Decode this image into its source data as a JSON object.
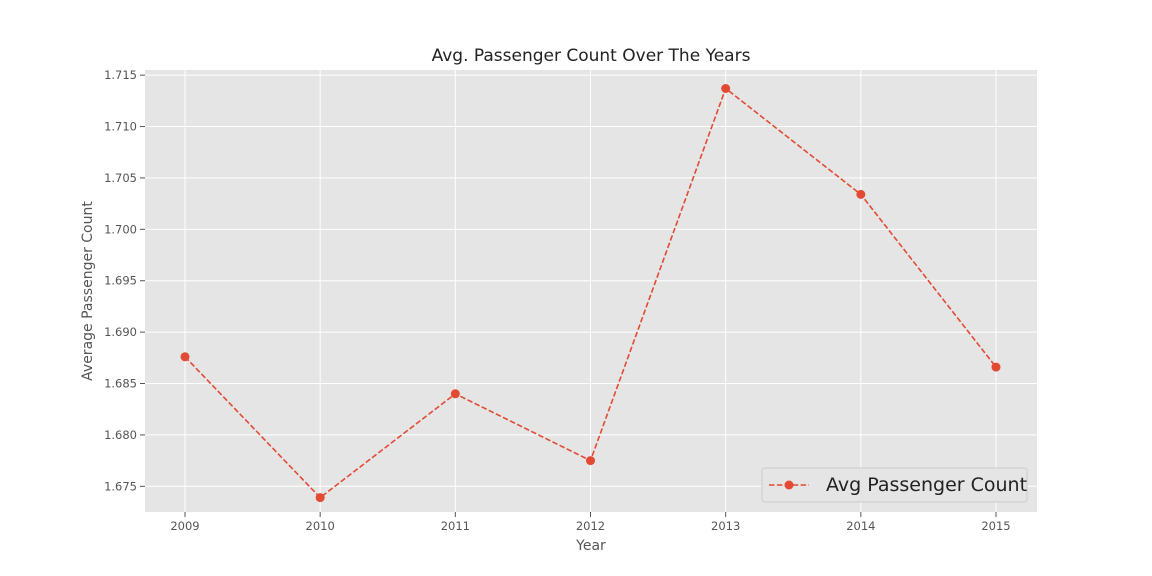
{
  "chart_data": {
    "type": "line",
    "title": "Avg. Passenger Count Over The Years",
    "xlabel": "Year",
    "ylabel": "Average Passenger Count",
    "x": [
      "2009",
      "2010",
      "2011",
      "2012",
      "2013",
      "2014",
      "2015"
    ],
    "series": [
      {
        "name": "Avg Passenger Count",
        "values": [
          1.6876,
          1.6739,
          1.684,
          1.6775,
          1.7137,
          1.7034,
          1.6866
        ],
        "color": "#E24A33",
        "line_style": "dashed",
        "marker": "circle"
      }
    ],
    "ylim": [
      1.6725,
      1.7155
    ],
    "yticks": [
      "1.675",
      "1.680",
      "1.685",
      "1.690",
      "1.695",
      "1.700",
      "1.705",
      "1.710",
      "1.715"
    ],
    "grid": true,
    "legend_position": "lower-right",
    "background_color": "#E5E5E5",
    "grid_color": "#FFFFFF"
  }
}
